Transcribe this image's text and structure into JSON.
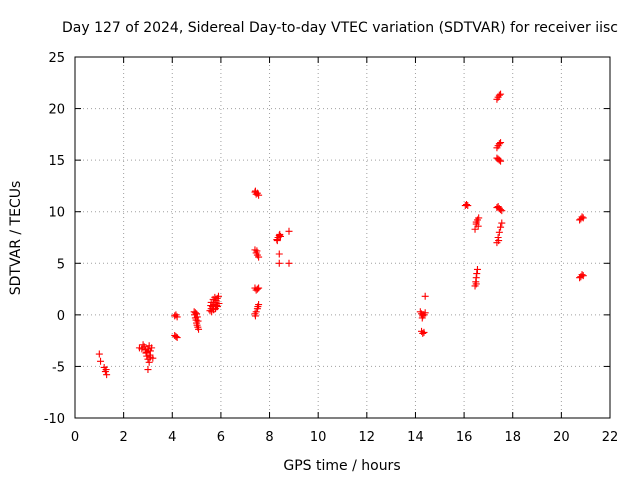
{
  "chart_data": {
    "type": "scatter",
    "title": "Day 127 of 2024, Sidereal Day-to-day VTEC variation (SDTVAR) for receiver iisc",
    "xlabel": "GPS time / hours",
    "ylabel": "SDTVAR / TECUs",
    "xlim": [
      0,
      22
    ],
    "ylim": [
      -10,
      25
    ],
    "xticks": [
      0,
      2,
      4,
      6,
      8,
      10,
      12,
      14,
      16,
      18,
      20,
      22
    ],
    "yticks": [
      -10,
      -5,
      0,
      5,
      10,
      15,
      20,
      25
    ],
    "xtick_labels": [
      "0",
      "2",
      "4",
      "6",
      "8",
      "10",
      "12",
      "14",
      "16",
      "18",
      "20",
      "22"
    ],
    "ytick_labels": [
      "-10",
      "-5",
      "0",
      "5",
      "10",
      "15",
      "20",
      "25"
    ],
    "grid": true,
    "marker": "+",
    "color": "#ff0000",
    "series": [
      {
        "name": "SDTVAR",
        "points": [
          [
            1.0,
            -3.8
          ],
          [
            1.05,
            -4.5
          ],
          [
            1.2,
            -5.1
          ],
          [
            1.25,
            -5.5
          ],
          [
            1.3,
            -5.8
          ],
          [
            1.28,
            -5.3
          ],
          [
            2.65,
            -3.2
          ],
          [
            2.75,
            -3.3
          ],
          [
            2.85,
            -3.1
          ],
          [
            2.9,
            -3.4
          ],
          [
            2.95,
            -3.6
          ],
          [
            3.0,
            -3.3
          ],
          [
            3.05,
            -3.0
          ],
          [
            3.1,
            -3.5
          ],
          [
            2.8,
            -2.9
          ],
          [
            3.15,
            -3.2
          ],
          [
            2.95,
            -4.0
          ],
          [
            3.0,
            -4.3
          ],
          [
            3.05,
            -4.6
          ],
          [
            3.1,
            -4.1
          ],
          [
            3.2,
            -4.2
          ],
          [
            3.0,
            -5.3
          ],
          [
            2.92,
            -3.7
          ],
          [
            3.08,
            -3.9
          ],
          [
            4.1,
            -0.1
          ],
          [
            4.15,
            0.0
          ],
          [
            4.2,
            -0.2
          ],
          [
            4.1,
            -2.0
          ],
          [
            4.15,
            -2.1
          ],
          [
            4.2,
            -2.2
          ],
          [
            4.9,
            0.3
          ],
          [
            4.92,
            0.0
          ],
          [
            4.95,
            -0.3
          ],
          [
            4.98,
            -0.5
          ],
          [
            5.0,
            -0.8
          ],
          [
            5.02,
            -1.0
          ],
          [
            5.05,
            -1.2
          ],
          [
            5.08,
            -1.4
          ],
          [
            5.0,
            0.1
          ],
          [
            4.95,
            0.2
          ],
          [
            5.03,
            -0.2
          ],
          [
            5.06,
            -0.6
          ],
          [
            5.55,
            0.4
          ],
          [
            5.6,
            0.6
          ],
          [
            5.65,
            0.8
          ],
          [
            5.7,
            1.0
          ],
          [
            5.75,
            1.2
          ],
          [
            5.8,
            1.4
          ],
          [
            5.85,
            1.6
          ],
          [
            5.9,
            1.8
          ],
          [
            5.62,
            0.3
          ],
          [
            5.7,
            0.5
          ],
          [
            5.78,
            0.6
          ],
          [
            5.86,
            0.8
          ],
          [
            5.6,
            1.2
          ],
          [
            5.68,
            1.5
          ],
          [
            5.75,
            1.7
          ],
          [
            5.82,
            0.9
          ],
          [
            5.58,
            0.9
          ],
          [
            5.92,
            1.1
          ],
          [
            7.4,
            11.9
          ],
          [
            7.45,
            11.7
          ],
          [
            7.5,
            11.8
          ],
          [
            7.55,
            11.6
          ],
          [
            7.42,
            12.0
          ],
          [
            7.4,
            6.3
          ],
          [
            7.45,
            6.0
          ],
          [
            7.5,
            5.8
          ],
          [
            7.55,
            5.6
          ],
          [
            7.48,
            6.2
          ],
          [
            7.4,
            2.6
          ],
          [
            7.45,
            2.4
          ],
          [
            7.5,
            2.5
          ],
          [
            7.55,
            2.6
          ],
          [
            7.4,
            0.1
          ],
          [
            7.45,
            0.3
          ],
          [
            7.5,
            0.6
          ],
          [
            7.55,
            1.0
          ],
          [
            7.42,
            -0.1
          ],
          [
            7.52,
            0.8
          ],
          [
            8.3,
            7.3
          ],
          [
            8.35,
            7.5
          ],
          [
            8.4,
            7.7
          ],
          [
            8.45,
            7.6
          ],
          [
            8.32,
            7.2
          ],
          [
            8.42,
            7.8
          ],
          [
            8.4,
            5.9
          ],
          [
            8.4,
            5.0
          ],
          [
            8.8,
            8.1
          ],
          [
            8.8,
            5.0
          ],
          [
            14.2,
            0.3
          ],
          [
            14.25,
            0.1
          ],
          [
            14.3,
            -0.1
          ],
          [
            14.35,
            0.0
          ],
          [
            14.4,
            0.2
          ],
          [
            14.28,
            -0.3
          ],
          [
            14.25,
            -1.6
          ],
          [
            14.3,
            -1.8
          ],
          [
            14.35,
            -1.7
          ],
          [
            14.4,
            1.8
          ],
          [
            16.05,
            10.6
          ],
          [
            16.1,
            10.7
          ],
          [
            16.15,
            10.6
          ],
          [
            16.45,
            8.3
          ],
          [
            16.5,
            8.8
          ],
          [
            16.55,
            9.2
          ],
          [
            16.6,
            9.4
          ],
          [
            16.5,
            9.0
          ],
          [
            16.58,
            8.6
          ],
          [
            16.45,
            2.8
          ],
          [
            16.48,
            3.2
          ],
          [
            16.5,
            3.6
          ],
          [
            16.52,
            4.0
          ],
          [
            16.55,
            4.4
          ],
          [
            16.5,
            3.0
          ],
          [
            17.35,
            20.9
          ],
          [
            17.4,
            21.1
          ],
          [
            17.45,
            21.3
          ],
          [
            17.5,
            21.4
          ],
          [
            17.35,
            16.2
          ],
          [
            17.4,
            16.4
          ],
          [
            17.45,
            16.6
          ],
          [
            17.5,
            16.7
          ],
          [
            17.35,
            15.2
          ],
          [
            17.4,
            15.1
          ],
          [
            17.45,
            15.0
          ],
          [
            17.5,
            14.9
          ],
          [
            17.35,
            10.4
          ],
          [
            17.4,
            10.5
          ],
          [
            17.45,
            10.3
          ],
          [
            17.5,
            10.2
          ],
          [
            17.55,
            10.1
          ],
          [
            17.35,
            7.0
          ],
          [
            17.4,
            7.5
          ],
          [
            17.45,
            8.0
          ],
          [
            17.5,
            8.5
          ],
          [
            17.55,
            8.9
          ],
          [
            17.42,
            7.2
          ],
          [
            20.75,
            9.2
          ],
          [
            20.8,
            9.3
          ],
          [
            20.85,
            9.5
          ],
          [
            20.9,
            9.4
          ],
          [
            20.75,
            3.6
          ],
          [
            20.8,
            3.7
          ],
          [
            20.85,
            3.9
          ],
          [
            20.9,
            3.8
          ]
        ]
      }
    ]
  }
}
